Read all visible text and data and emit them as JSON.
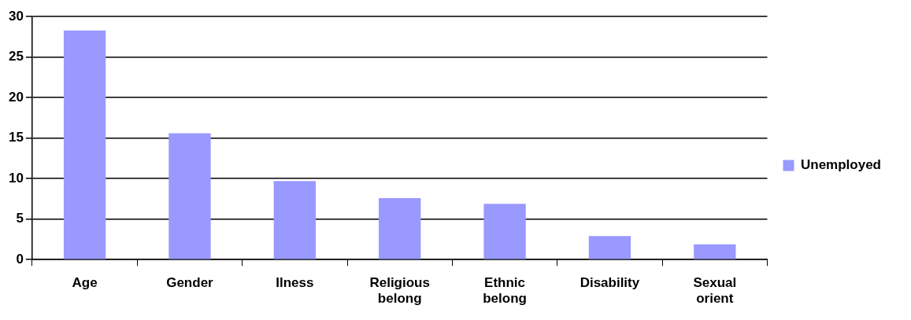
{
  "chart_data": {
    "type": "bar",
    "categories": [
      "Age",
      "Gender",
      "Ilness",
      "Religious belong",
      "Ethnic belong",
      "Disability",
      "Sexual orient"
    ],
    "series": [
      {
        "name": "Unemployed",
        "color": "#9999ff",
        "values": [
          28.3,
          15.6,
          9.7,
          7.6,
          6.9,
          2.9,
          1.9
        ]
      }
    ],
    "ylim": [
      0,
      30
    ],
    "yticks": [
      0,
      5,
      10,
      15,
      20,
      25,
      30
    ],
    "grid": "y",
    "legend": "right"
  }
}
